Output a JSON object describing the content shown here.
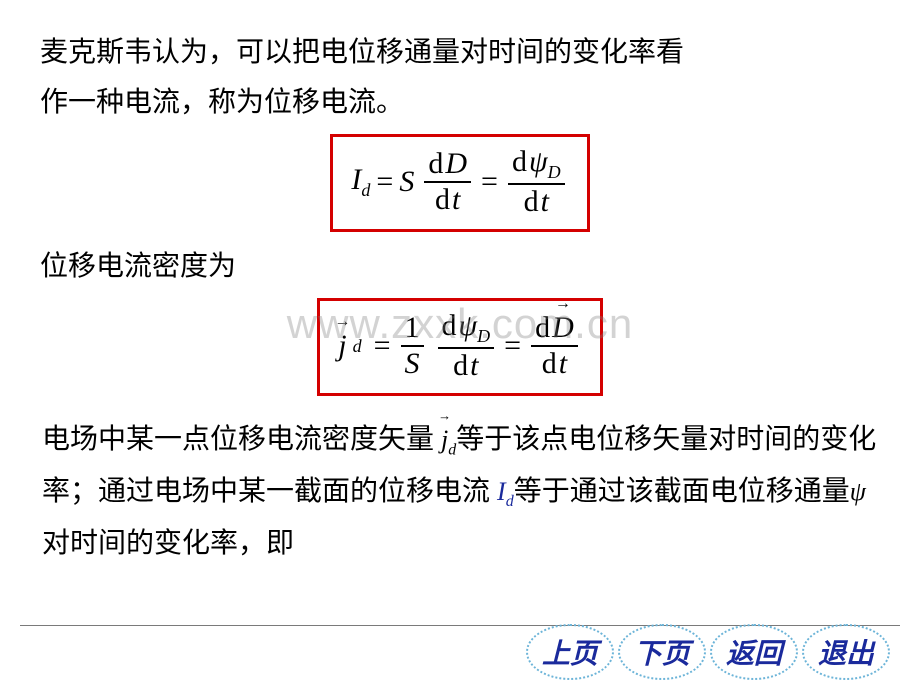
{
  "paragraphs": {
    "p1a": "麦克斯韦认为，可以把电位移通量对时间的变化率看",
    "p1b": "作一种电流，称为位移电流。",
    "p2": "位移电流密度为",
    "p3_part1": "电场中某一点位移电流密度矢量 ",
    "p3_part2": "等于该点电位移矢量对时间的变化率；通过电场中某一截面的位移电流 ",
    "p3_part3": "等于通过该截面电位移通量",
    "p3_part4": "对时间的变化率，即"
  },
  "symbols": {
    "jd": "j",
    "jd_sub": "d",
    "Id": "I",
    "Id_sub": "d",
    "psi": "ψ"
  },
  "equations": {
    "eq1": {
      "lhs": "I",
      "lhs_sub": "d",
      "eq": "=",
      "S": "S",
      "dD": "D",
      "dt": "t",
      "dpsi": "ψ",
      "dpsi_sub": "D",
      "d": "d"
    },
    "eq2": {
      "lhs": "j",
      "lhs_sub": "d",
      "eq": "=",
      "one": "1",
      "S": "S",
      "dpsi": "ψ",
      "dpsi_sub": "D",
      "dt": "t",
      "dD": "D",
      "d": "d"
    }
  },
  "styling": {
    "eq_border_color": "#d40000",
    "text_color": "#000000",
    "nav_color": "#1a2a9c",
    "nav_border_color": "#6cb4d8",
    "body_font_size": 28,
    "eq_font_size": 30,
    "watermark_text": "www.zxxk.com.cn",
    "watermark_color": "rgba(130,130,130,0.35)"
  },
  "nav": {
    "prev": "上页",
    "next": "下页",
    "back": "返回",
    "exit": "退出"
  }
}
